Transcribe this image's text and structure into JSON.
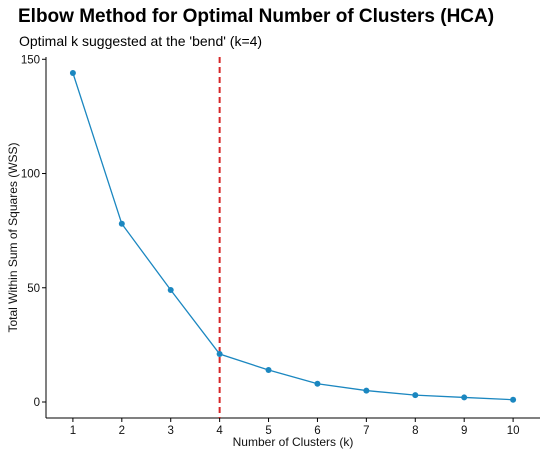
{
  "chart_data": {
    "type": "line",
    "title": "Elbow Method for Optimal Number of Clusters (HCA)",
    "subtitle": "Optimal k suggested at the 'bend' (k=4)",
    "xlabel": "Number of Clusters (k)",
    "ylabel": "Total Within Sum of Squares (WSS)",
    "x": [
      1,
      2,
      3,
      4,
      5,
      6,
      7,
      8,
      9,
      10
    ],
    "y": [
      144,
      78,
      49,
      21,
      14,
      8,
      5,
      3,
      2,
      1
    ],
    "xlim": [
      0.45,
      10.55
    ],
    "ylim": [
      -7,
      151
    ],
    "xticks": [
      1,
      2,
      3,
      4,
      5,
      6,
      7,
      8,
      9,
      10
    ],
    "yticks": [
      0,
      50,
      100,
      150
    ],
    "reference_line": {
      "x": 4,
      "style": "dashed"
    },
    "grid": false,
    "line_color": "#1b87c0",
    "point_color": "#1b87c0",
    "reference_color": "#d62728"
  }
}
